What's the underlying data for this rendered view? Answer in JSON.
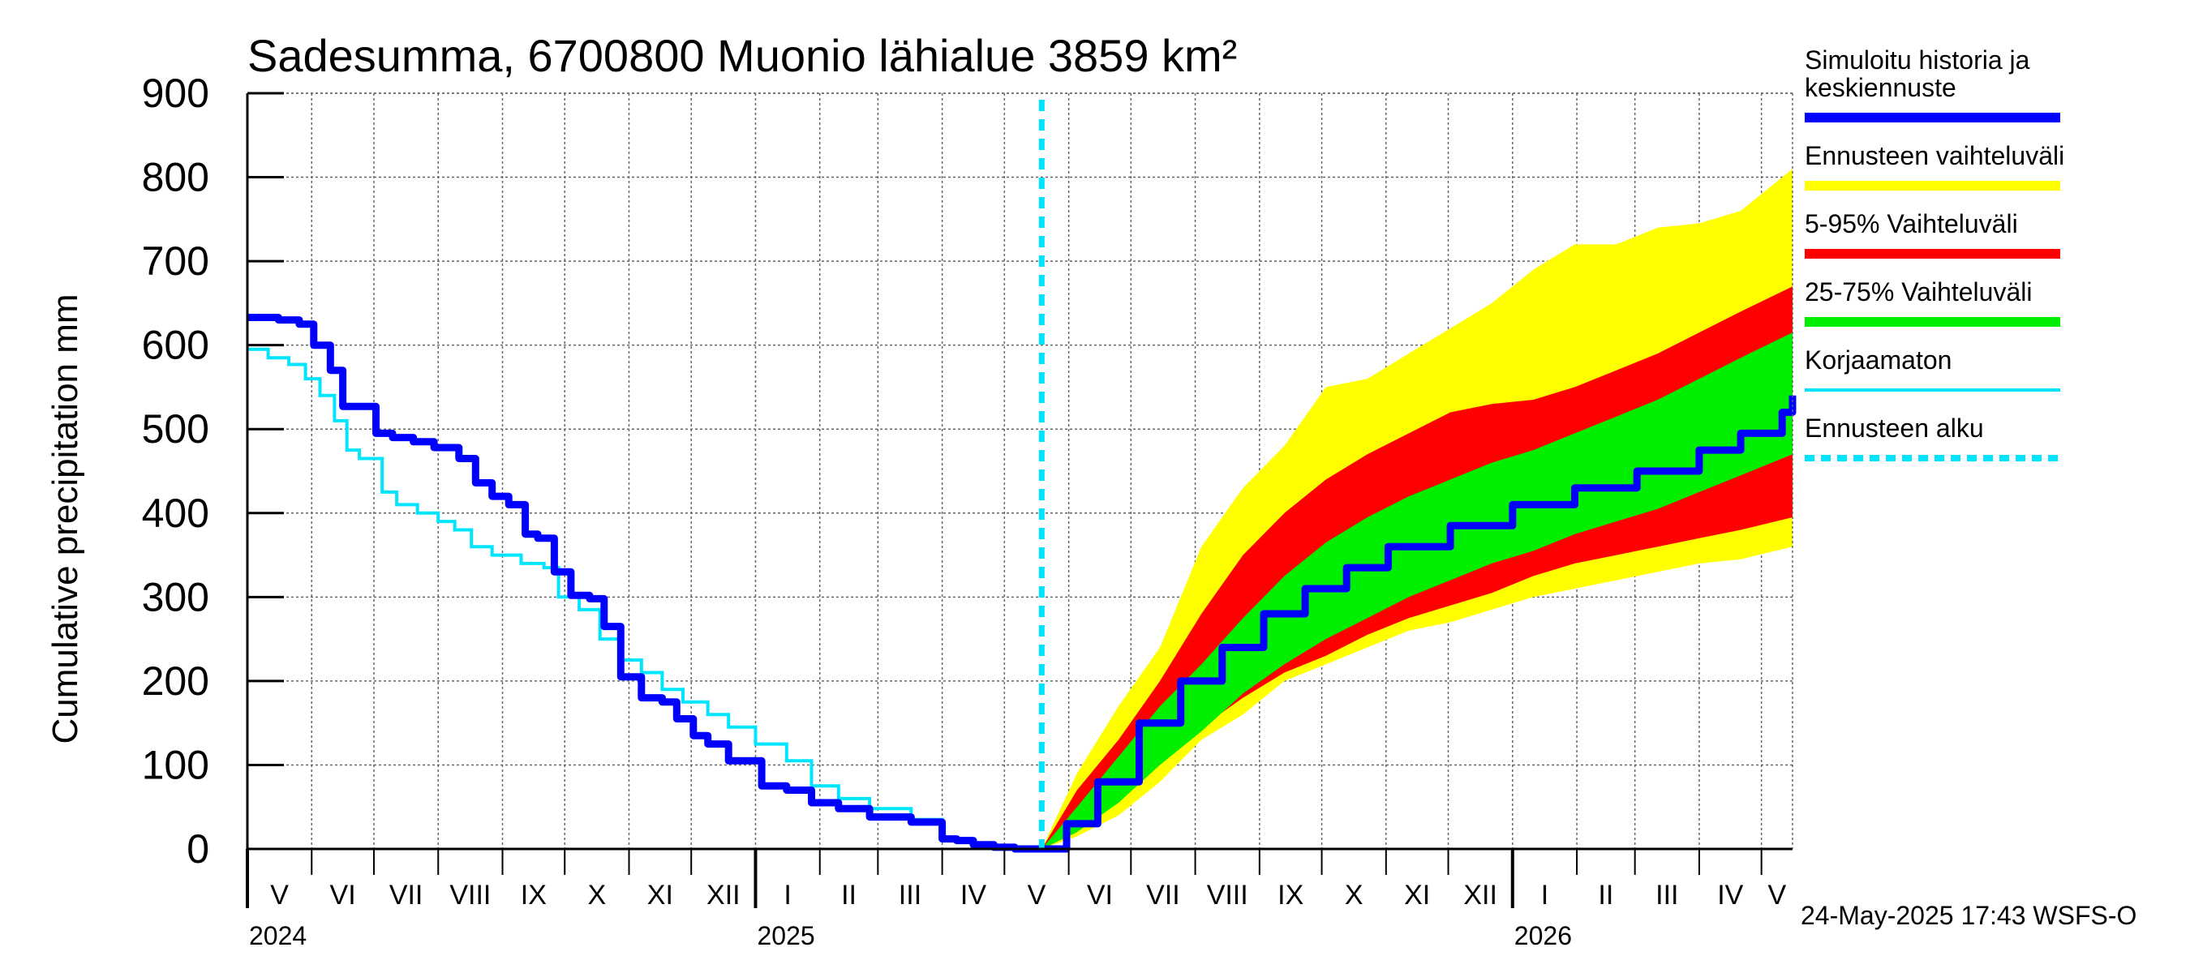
{
  "chart_data": {
    "type": "area",
    "title": "Sadesumma, 6700800 Muonio lähialue 3859 km²",
    "ylabel": "Cumulative precipitation   mm",
    "ylim": [
      0,
      900
    ],
    "yticks": [
      "0",
      "100",
      "200",
      "300",
      "400",
      "500",
      "600",
      "700",
      "800",
      "900"
    ],
    "x_range_days": [
      0,
      745
    ],
    "months": [
      {
        "label": "V",
        "day": 0,
        "end": 31
      },
      {
        "label": "VI",
        "day": 31,
        "end": 61
      },
      {
        "label": "VII",
        "day": 61,
        "end": 92
      },
      {
        "label": "VIII",
        "day": 92,
        "end": 123
      },
      {
        "label": "IX",
        "day": 123,
        "end": 153
      },
      {
        "label": "X",
        "day": 153,
        "end": 184
      },
      {
        "label": "XI",
        "day": 184,
        "end": 214
      },
      {
        "label": "XII",
        "day": 214,
        "end": 245
      },
      {
        "label": "I",
        "day": 245,
        "end": 276
      },
      {
        "label": "II",
        "day": 276,
        "end": 304
      },
      {
        "label": "III",
        "day": 304,
        "end": 335
      },
      {
        "label": "IV",
        "day": 335,
        "end": 365
      },
      {
        "label": "V",
        "day": 365,
        "end": 396
      },
      {
        "label": "VI",
        "day": 396,
        "end": 426
      },
      {
        "label": "VII",
        "day": 426,
        "end": 457
      },
      {
        "label": "VIII",
        "day": 457,
        "end": 488
      },
      {
        "label": "IX",
        "day": 488,
        "end": 518
      },
      {
        "label": "X",
        "day": 518,
        "end": 549
      },
      {
        "label": "XI",
        "day": 549,
        "end": 579
      },
      {
        "label": "XII",
        "day": 579,
        "end": 610
      },
      {
        "label": "I",
        "day": 610,
        "end": 641
      },
      {
        "label": "II",
        "day": 641,
        "end": 669
      },
      {
        "label": "III",
        "day": 669,
        "end": 700
      },
      {
        "label": "IV",
        "day": 700,
        "end": 730
      },
      {
        "label": "V",
        "day": 730,
        "end": 745
      }
    ],
    "years": [
      {
        "label": "2024",
        "day": 0
      },
      {
        "label": "2025",
        "day": 245
      },
      {
        "label": "2026",
        "day": 610
      }
    ],
    "year_boundaries_days": [
      245,
      610
    ],
    "forecast_start_day": 383,
    "series": [
      {
        "name": "Simuloitu historia ja keskiennuste",
        "color": "#0000ff",
        "x": [
          0,
          15,
          25,
          32,
          40,
          46,
          50,
          62,
          70,
          80,
          90,
          96,
          102,
          110,
          118,
          126,
          134,
          140,
          148,
          156,
          165,
          172,
          180,
          190,
          200,
          207,
          215,
          222,
          232,
          248,
          260,
          272,
          285,
          300,
          320,
          335,
          342,
          350,
          360,
          370,
          378,
          383,
          395,
          410,
          430,
          450,
          470,
          490,
          510,
          530,
          550,
          580,
          610,
          640,
          670,
          700,
          720,
          740,
          745
        ],
        "values": [
          633,
          630,
          625,
          600,
          570,
          527,
          527,
          495,
          490,
          485,
          478,
          478,
          465,
          436,
          420,
          410,
          375,
          370,
          330,
          302,
          298,
          265,
          205,
          180,
          175,
          155,
          135,
          125,
          105,
          75,
          70,
          55,
          48,
          38,
          32,
          12,
          10,
          5,
          2,
          0,
          0,
          0,
          30,
          80,
          150,
          200,
          240,
          280,
          310,
          335,
          360,
          385,
          410,
          430,
          450,
          475,
          495,
          520,
          540
        ]
      },
      {
        "name": "Korjaamaton",
        "color": "#00e5ff",
        "x": [
          0,
          10,
          20,
          28,
          35,
          42,
          48,
          54,
          65,
          72,
          82,
          92,
          100,
          108,
          118,
          132,
          143,
          150,
          160,
          170,
          180,
          190,
          200,
          210,
          222,
          232,
          245,
          260,
          272,
          285,
          300,
          320,
          335,
          342,
          350,
          360,
          370,
          380
        ],
        "values": [
          595,
          585,
          577,
          560,
          540,
          510,
          475,
          465,
          425,
          410,
          400,
          390,
          380,
          360,
          350,
          340,
          335,
          300,
          285,
          250,
          225,
          210,
          190,
          175,
          160,
          145,
          125,
          105,
          75,
          60,
          48,
          35,
          12,
          10,
          5,
          2,
          0,
          0
        ]
      }
    ],
    "bands": [
      {
        "name": "Ennusteen vaihteluväli",
        "color": "#ffff00",
        "x": [
          383,
          400,
          420,
          440,
          460,
          480,
          500,
          520,
          540,
          560,
          580,
          600,
          620,
          640,
          660,
          680,
          700,
          720,
          745
        ],
        "upper": [
          0,
          90,
          170,
          240,
          360,
          430,
          480,
          550,
          560,
          590,
          620,
          650,
          690,
          720,
          720,
          740,
          745,
          760,
          810
        ],
        "lower": [
          0,
          15,
          40,
          80,
          130,
          160,
          200,
          220,
          240,
          260,
          270,
          285,
          300,
          310,
          320,
          330,
          340,
          345,
          360
        ]
      },
      {
        "name": "5-95% Vaihteluväli",
        "color": "#ff0000",
        "x": [
          383,
          400,
          420,
          440,
          460,
          480,
          500,
          520,
          540,
          560,
          580,
          600,
          620,
          640,
          660,
          680,
          700,
          720,
          745
        ],
        "upper": [
          0,
          70,
          130,
          200,
          280,
          350,
          400,
          440,
          470,
          495,
          520,
          530,
          535,
          550,
          570,
          590,
          615,
          640,
          670
        ],
        "lower": [
          0,
          20,
          60,
          100,
          145,
          180,
          210,
          230,
          255,
          275,
          290,
          305,
          325,
          340,
          350,
          360,
          370,
          380,
          395
        ]
      },
      {
        "name": "25-75% Vaihteluväli",
        "color": "#00ee00",
        "x": [
          383,
          400,
          420,
          440,
          460,
          480,
          500,
          520,
          540,
          560,
          580,
          600,
          620,
          640,
          660,
          680,
          700,
          720,
          745
        ],
        "upper": [
          0,
          50,
          110,
          170,
          220,
          275,
          325,
          365,
          395,
          420,
          440,
          460,
          475,
          495,
          515,
          535,
          560,
          585,
          615
        ],
        "lower": [
          0,
          20,
          55,
          100,
          140,
          185,
          220,
          250,
          275,
          300,
          320,
          340,
          355,
          375,
          390,
          405,
          425,
          445,
          470
        ]
      }
    ],
    "legend_position": "right",
    "legend": [
      {
        "label": "Simuloitu historia ja keskiennuste",
        "color": "#0000ff",
        "style": "line"
      },
      {
        "label": "Ennusteen vaihteluväli",
        "color": "#ffff00",
        "style": "line"
      },
      {
        "label": "5-95% Vaihteluväli",
        "color": "#ff0000",
        "style": "line"
      },
      {
        "label": "25-75% Vaihteluväli",
        "color": "#00ee00",
        "style": "line"
      },
      {
        "label": "Korjaamaton",
        "color": "#00e5ff",
        "style": "thin"
      },
      {
        "label": "Ennusteen alku",
        "color": "#00e5ff",
        "style": "dashed"
      }
    ],
    "timestamp": "24-May-2025 17:43 WSFS-O"
  }
}
